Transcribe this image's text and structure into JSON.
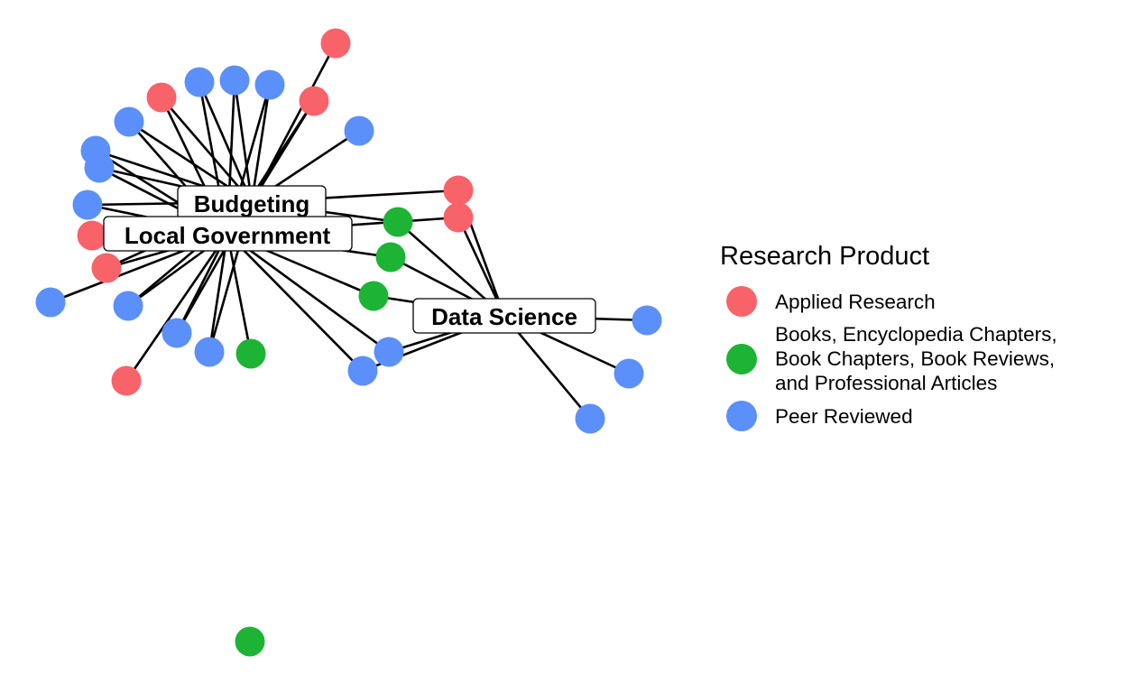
{
  "legend": {
    "title": "Research Product",
    "items": [
      {
        "label": "Applied Research",
        "color": "#f8636a"
      },
      {
        "label": "Books, Encyclopedia Chapters,\nBook Chapters, Book Reviews,\nand Professional Articles",
        "color": "#1db335"
      },
      {
        "label": "Peer Reviewed",
        "color": "#5b8ffa"
      }
    ]
  },
  "hubs": [
    {
      "id": "budgeting",
      "label": "Budgeting"
    },
    {
      "id": "local",
      "label": "Local Government"
    },
    {
      "id": "ds",
      "label": "Data Science"
    }
  ],
  "product_nodes": [
    {
      "category": 0,
      "connects_to": [
        "budgeting"
      ]
    },
    {
      "category": 0,
      "connects_to": [
        "budgeting",
        "local"
      ]
    },
    {
      "category": 2,
      "connects_to": [
        "budgeting",
        "local"
      ]
    },
    {
      "category": 2,
      "connects_to": [
        "budgeting",
        "local"
      ]
    },
    {
      "category": 2,
      "connects_to": [
        "budgeting",
        "local"
      ]
    },
    {
      "category": 0,
      "connects_to": [
        "budgeting",
        "local"
      ]
    },
    {
      "category": 2,
      "connects_to": [
        "budgeting"
      ]
    },
    {
      "category": 2,
      "connects_to": [
        "budgeting",
        "local"
      ]
    },
    {
      "category": 2,
      "connects_to": [
        "budgeting",
        "local"
      ]
    },
    {
      "category": 2,
      "connects_to": [
        "budgeting",
        "local"
      ]
    },
    {
      "category": 2,
      "connects_to": [
        "budgeting",
        "local"
      ]
    },
    {
      "category": 0,
      "connects_to": [
        "budgeting",
        "local"
      ]
    },
    {
      "category": 0,
      "connects_to": [
        "budgeting",
        "local"
      ]
    },
    {
      "category": 2,
      "connects_to": [
        "local"
      ]
    },
    {
      "category": 2,
      "connects_to": [
        "budgeting",
        "local"
      ]
    },
    {
      "category": 2,
      "connects_to": [
        "budgeting",
        "local"
      ]
    },
    {
      "category": 0,
      "connects_to": [
        "local"
      ]
    },
    {
      "category": 2,
      "connects_to": [
        "budgeting",
        "local"
      ]
    },
    {
      "category": 1,
      "connects_to": [
        "local"
      ]
    },
    {
      "category": 0,
      "connects_to": [
        "budgeting",
        "ds"
      ]
    },
    {
      "category": 0,
      "connects_to": [
        "local",
        "ds"
      ]
    },
    {
      "category": 1,
      "connects_to": [
        "budgeting",
        "ds"
      ]
    },
    {
      "category": 1,
      "connects_to": [
        "local",
        "ds"
      ]
    },
    {
      "category": 1,
      "connects_to": [
        "local",
        "ds"
      ]
    },
    {
      "category": 2,
      "connects_to": [
        "local",
        "ds"
      ]
    },
    {
      "category": 2,
      "connects_to": [
        "local",
        "ds"
      ]
    },
    {
      "category": 2,
      "connects_to": [
        "ds"
      ]
    },
    {
      "category": 2,
      "connects_to": [
        "ds"
      ]
    },
    {
      "category": 2,
      "connects_to": [
        "ds"
      ]
    },
    {
      "category": 1,
      "connects_to": []
    }
  ]
}
